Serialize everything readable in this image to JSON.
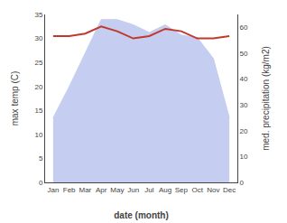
{
  "chart_data": {
    "type": "line",
    "xlabel": "date (month)",
    "ylabel": "max temp (C)",
    "y2label": "med. precipitation (kg/m2)",
    "categories": [
      "Jan",
      "Feb",
      "Mar",
      "Apr",
      "May",
      "Jun",
      "Jul",
      "Aug",
      "Sep",
      "Oct",
      "Nov",
      "Dec"
    ],
    "series": [
      {
        "type": "area",
        "axis": "y2",
        "color": "#c5cdf0",
        "values": [
          25,
          37,
          50,
          63,
          63,
          61,
          58,
          61,
          57,
          56,
          48,
          25
        ]
      },
      {
        "type": "line",
        "color": "#c0392b",
        "values": [
          30.5,
          30.5,
          31.0,
          32.5,
          31.5,
          30.0,
          30.5,
          32.0,
          31.5,
          30.0,
          30.0,
          30.5
        ]
      }
    ],
    "ylim": [
      0,
      35
    ],
    "yticks": [
      0,
      5,
      10,
      15,
      20,
      25,
      30,
      35
    ],
    "y2lim": [
      0,
      65
    ],
    "y2ticks": [
      0,
      10,
      20,
      30,
      40,
      50,
      60
    ],
    "grid": false
  }
}
